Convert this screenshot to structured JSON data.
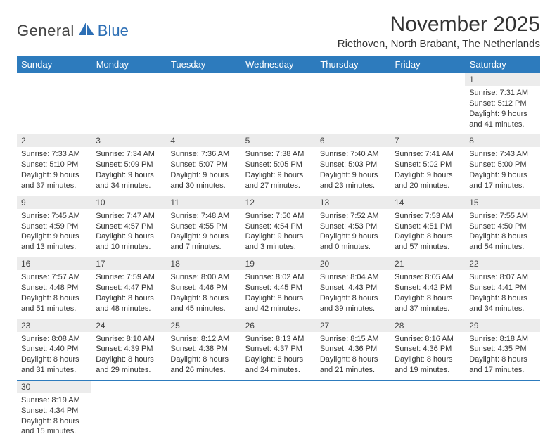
{
  "logo": {
    "text1": "General",
    "text2": "Blue"
  },
  "title": "November 2025",
  "location": "Riethoven, North Brabant, The Netherlands",
  "colors": {
    "header_bg": "#2d7bbd",
    "header_text": "#ffffff",
    "daynum_bg": "#ececec",
    "cell_border": "#2d7bbd",
    "logo_blue": "#2d6fb5",
    "body_text": "#333333",
    "page_bg": "#ffffff"
  },
  "day_headers": [
    "Sunday",
    "Monday",
    "Tuesday",
    "Wednesday",
    "Thursday",
    "Friday",
    "Saturday"
  ],
  "weeks": [
    [
      {
        "blank": true
      },
      {
        "blank": true
      },
      {
        "blank": true
      },
      {
        "blank": true
      },
      {
        "blank": true
      },
      {
        "blank": true
      },
      {
        "n": "1",
        "sr": "Sunrise: 7:31 AM",
        "ss": "Sunset: 5:12 PM",
        "d1": "Daylight: 9 hours",
        "d2": "and 41 minutes."
      }
    ],
    [
      {
        "n": "2",
        "sr": "Sunrise: 7:33 AM",
        "ss": "Sunset: 5:10 PM",
        "d1": "Daylight: 9 hours",
        "d2": "and 37 minutes."
      },
      {
        "n": "3",
        "sr": "Sunrise: 7:34 AM",
        "ss": "Sunset: 5:09 PM",
        "d1": "Daylight: 9 hours",
        "d2": "and 34 minutes."
      },
      {
        "n": "4",
        "sr": "Sunrise: 7:36 AM",
        "ss": "Sunset: 5:07 PM",
        "d1": "Daylight: 9 hours",
        "d2": "and 30 minutes."
      },
      {
        "n": "5",
        "sr": "Sunrise: 7:38 AM",
        "ss": "Sunset: 5:05 PM",
        "d1": "Daylight: 9 hours",
        "d2": "and 27 minutes."
      },
      {
        "n": "6",
        "sr": "Sunrise: 7:40 AM",
        "ss": "Sunset: 5:03 PM",
        "d1": "Daylight: 9 hours",
        "d2": "and 23 minutes."
      },
      {
        "n": "7",
        "sr": "Sunrise: 7:41 AM",
        "ss": "Sunset: 5:02 PM",
        "d1": "Daylight: 9 hours",
        "d2": "and 20 minutes."
      },
      {
        "n": "8",
        "sr": "Sunrise: 7:43 AM",
        "ss": "Sunset: 5:00 PM",
        "d1": "Daylight: 9 hours",
        "d2": "and 17 minutes."
      }
    ],
    [
      {
        "n": "9",
        "sr": "Sunrise: 7:45 AM",
        "ss": "Sunset: 4:59 PM",
        "d1": "Daylight: 9 hours",
        "d2": "and 13 minutes."
      },
      {
        "n": "10",
        "sr": "Sunrise: 7:47 AM",
        "ss": "Sunset: 4:57 PM",
        "d1": "Daylight: 9 hours",
        "d2": "and 10 minutes."
      },
      {
        "n": "11",
        "sr": "Sunrise: 7:48 AM",
        "ss": "Sunset: 4:55 PM",
        "d1": "Daylight: 9 hours",
        "d2": "and 7 minutes."
      },
      {
        "n": "12",
        "sr": "Sunrise: 7:50 AM",
        "ss": "Sunset: 4:54 PM",
        "d1": "Daylight: 9 hours",
        "d2": "and 3 minutes."
      },
      {
        "n": "13",
        "sr": "Sunrise: 7:52 AM",
        "ss": "Sunset: 4:53 PM",
        "d1": "Daylight: 9 hours",
        "d2": "and 0 minutes."
      },
      {
        "n": "14",
        "sr": "Sunrise: 7:53 AM",
        "ss": "Sunset: 4:51 PM",
        "d1": "Daylight: 8 hours",
        "d2": "and 57 minutes."
      },
      {
        "n": "15",
        "sr": "Sunrise: 7:55 AM",
        "ss": "Sunset: 4:50 PM",
        "d1": "Daylight: 8 hours",
        "d2": "and 54 minutes."
      }
    ],
    [
      {
        "n": "16",
        "sr": "Sunrise: 7:57 AM",
        "ss": "Sunset: 4:48 PM",
        "d1": "Daylight: 8 hours",
        "d2": "and 51 minutes."
      },
      {
        "n": "17",
        "sr": "Sunrise: 7:59 AM",
        "ss": "Sunset: 4:47 PM",
        "d1": "Daylight: 8 hours",
        "d2": "and 48 minutes."
      },
      {
        "n": "18",
        "sr": "Sunrise: 8:00 AM",
        "ss": "Sunset: 4:46 PM",
        "d1": "Daylight: 8 hours",
        "d2": "and 45 minutes."
      },
      {
        "n": "19",
        "sr": "Sunrise: 8:02 AM",
        "ss": "Sunset: 4:45 PM",
        "d1": "Daylight: 8 hours",
        "d2": "and 42 minutes."
      },
      {
        "n": "20",
        "sr": "Sunrise: 8:04 AM",
        "ss": "Sunset: 4:43 PM",
        "d1": "Daylight: 8 hours",
        "d2": "and 39 minutes."
      },
      {
        "n": "21",
        "sr": "Sunrise: 8:05 AM",
        "ss": "Sunset: 4:42 PM",
        "d1": "Daylight: 8 hours",
        "d2": "and 37 minutes."
      },
      {
        "n": "22",
        "sr": "Sunrise: 8:07 AM",
        "ss": "Sunset: 4:41 PM",
        "d1": "Daylight: 8 hours",
        "d2": "and 34 minutes."
      }
    ],
    [
      {
        "n": "23",
        "sr": "Sunrise: 8:08 AM",
        "ss": "Sunset: 4:40 PM",
        "d1": "Daylight: 8 hours",
        "d2": "and 31 minutes."
      },
      {
        "n": "24",
        "sr": "Sunrise: 8:10 AM",
        "ss": "Sunset: 4:39 PM",
        "d1": "Daylight: 8 hours",
        "d2": "and 29 minutes."
      },
      {
        "n": "25",
        "sr": "Sunrise: 8:12 AM",
        "ss": "Sunset: 4:38 PM",
        "d1": "Daylight: 8 hours",
        "d2": "and 26 minutes."
      },
      {
        "n": "26",
        "sr": "Sunrise: 8:13 AM",
        "ss": "Sunset: 4:37 PM",
        "d1": "Daylight: 8 hours",
        "d2": "and 24 minutes."
      },
      {
        "n": "27",
        "sr": "Sunrise: 8:15 AM",
        "ss": "Sunset: 4:36 PM",
        "d1": "Daylight: 8 hours",
        "d2": "and 21 minutes."
      },
      {
        "n": "28",
        "sr": "Sunrise: 8:16 AM",
        "ss": "Sunset: 4:36 PM",
        "d1": "Daylight: 8 hours",
        "d2": "and 19 minutes."
      },
      {
        "n": "29",
        "sr": "Sunrise: 8:18 AM",
        "ss": "Sunset: 4:35 PM",
        "d1": "Daylight: 8 hours",
        "d2": "and 17 minutes."
      }
    ],
    [
      {
        "n": "30",
        "sr": "Sunrise: 8:19 AM",
        "ss": "Sunset: 4:34 PM",
        "d1": "Daylight: 8 hours",
        "d2": "and 15 minutes."
      },
      {
        "blank": true
      },
      {
        "blank": true
      },
      {
        "blank": true
      },
      {
        "blank": true
      },
      {
        "blank": true
      },
      {
        "blank": true
      }
    ]
  ]
}
